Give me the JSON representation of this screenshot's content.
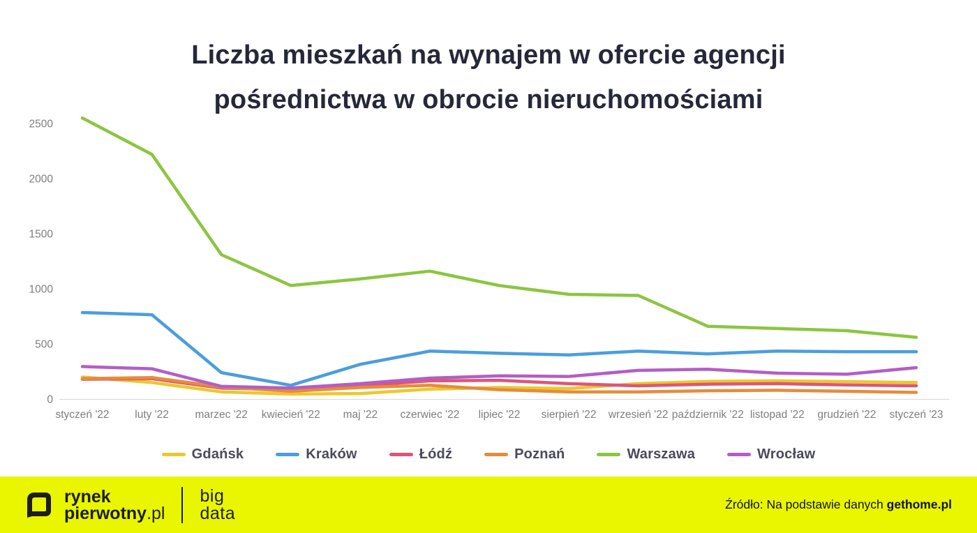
{
  "header": {
    "title_line1": "Liczba mieszkań na wynajem w ofercie agencji",
    "title_line2": "pośrednictwa w obrocie nieruchomościami"
  },
  "chart_data": {
    "type": "line",
    "title": "Liczba mieszkań na wynajem w ofercie agencji pośrednictwa w obrocie nieruchomościami",
    "categories": [
      "styczeń '22",
      "luty '22",
      "marzec '22",
      "kwiecień '22",
      "maj '22",
      "czerwiec '22",
      "lipiec '22",
      "sierpień '22",
      "wrzesień '22",
      "październik '22",
      "listopad '22",
      "grudzień '22",
      "styczeń '23"
    ],
    "y_ticks": [
      0,
      500,
      1000,
      1500,
      2000,
      2500
    ],
    "ylim": [
      0,
      2700
    ],
    "grid": "baseline-only",
    "legend_position": "bottom",
    "series": [
      {
        "name": "Gdańsk",
        "color": "#ECC72F",
        "values": [
          200,
          150,
          65,
          45,
          50,
          90,
          105,
          95,
          140,
          160,
          165,
          158,
          150
        ]
      },
      {
        "name": "Kraków",
        "color": "#4A9EDE",
        "values": [
          785,
          765,
          240,
          125,
          315,
          435,
          415,
          400,
          435,
          410,
          435,
          430,
          430
        ]
      },
      {
        "name": "Łódź",
        "color": "#DD5577",
        "values": [
          180,
          185,
          100,
          85,
          120,
          165,
          170,
          140,
          120,
          135,
          140,
          128,
          120
        ]
      },
      {
        "name": "Poznań",
        "color": "#E68C3A",
        "values": [
          185,
          195,
          110,
          70,
          105,
          125,
          85,
          65,
          65,
          75,
          80,
          70,
          60
        ]
      },
      {
        "name": "Warszawa",
        "color": "#8CC540",
        "values": [
          2550,
          2220,
          1310,
          1030,
          1090,
          1160,
          1030,
          950,
          940,
          660,
          640,
          620,
          560
        ]
      },
      {
        "name": "Wrocław",
        "color": "#B35EC6",
        "values": [
          295,
          275,
          115,
          100,
          140,
          190,
          210,
          205,
          260,
          270,
          235,
          225,
          285
        ]
      }
    ]
  },
  "footer": {
    "background": "#E9F600",
    "logo_line1": "rynek",
    "logo_line2_bold": "pierwotny",
    "logo_line2_suffix": ".pl",
    "brand_line1": "big",
    "brand_line2": "data",
    "source_prefix": "Źródło: Na podstawie danych ",
    "source_bold": "gethome.pl"
  }
}
